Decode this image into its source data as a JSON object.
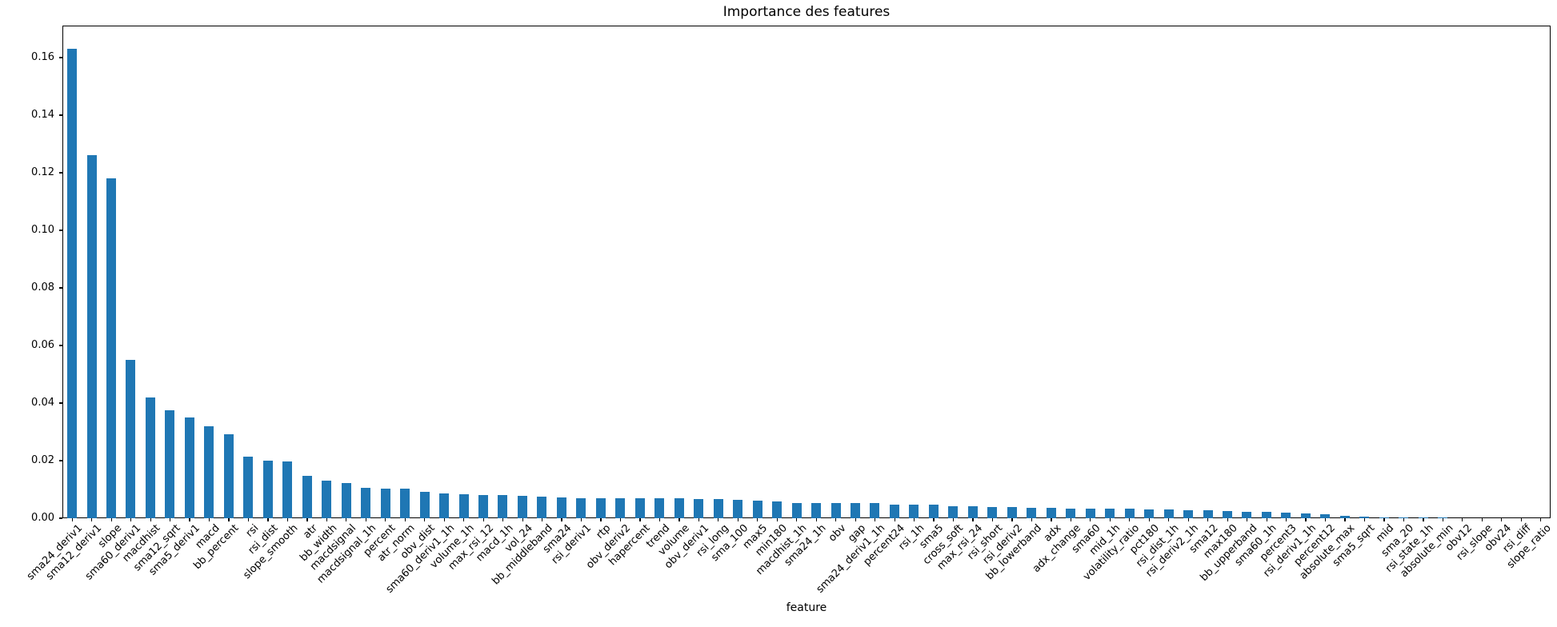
{
  "figure": {
    "background": "#ffffff",
    "text_color": "#000000",
    "axis_color": "#000000"
  },
  "chart_data": {
    "type": "bar",
    "title": "Importance des features",
    "xlabel": "feature",
    "ylabel": "",
    "bar_color": "#1f77b4",
    "grid": false,
    "legend": null,
    "ylim": [
      0,
      0.17111
    ],
    "yticks": [
      0.0,
      0.02,
      0.04,
      0.06,
      0.08,
      0.1,
      0.12,
      0.14,
      0.16
    ],
    "ytick_labels": [
      "0.00",
      "0.02",
      "0.04",
      "0.06",
      "0.08",
      "0.10",
      "0.12",
      "0.14",
      "0.16"
    ],
    "categories": [
      "sma24_deriv1",
      "sma12_deriv1",
      "slope",
      "sma60_deriv1",
      "macdhist",
      "sma12_sqrt",
      "sma5_deriv1",
      "macd",
      "bb_percent",
      "rsi",
      "rsi_dist",
      "slope_smooth",
      "atr",
      "bb_width",
      "macdsignal",
      "macdsignal_1h",
      "percent",
      "atr_norm",
      "obv_dist",
      "sma60_deriv1_1h",
      "volume_1h",
      "max_rsi_12",
      "macd_1h",
      "vol_24",
      "bb_middleband",
      "sma24",
      "rsi_deriv1",
      "rtp",
      "obv_deriv2",
      "hapercent",
      "trend",
      "volume",
      "obv_deriv1",
      "rsi_long",
      "sma_100",
      "max5",
      "min180",
      "macdhist_1h",
      "sma24_1h",
      "obv",
      "gap",
      "sma24_deriv1_1h",
      "percent24",
      "rsi_1h",
      "sma5",
      "cross_soft",
      "max_rsi_24",
      "rsi_short",
      "rsi_deriv2",
      "bb_lowerband",
      "adx",
      "adx_change",
      "sma60",
      "mid_1h",
      "volatility_ratio",
      "pct180",
      "rsi_dist_1h",
      "rsi_deriv2_1h",
      "sma12",
      "max180",
      "bb_upperband",
      "sma60_1h",
      "percent3",
      "rsi_deriv1_1h",
      "percent12",
      "absolute_max",
      "sma5_sqrt",
      "mid",
      "sma_20",
      "rsi_state_1h",
      "absolute_min",
      "obv12",
      "rsi_slope",
      "obv24",
      "rsi_diff",
      "slope_ratio"
    ],
    "values": [
      0.163,
      0.126,
      0.118,
      0.055,
      0.042,
      0.0375,
      0.035,
      0.032,
      0.029,
      0.0212,
      0.02,
      0.0198,
      0.0146,
      0.013,
      0.0123,
      0.0104,
      0.0102,
      0.0101,
      0.0092,
      0.0086,
      0.0084,
      0.008,
      0.0079,
      0.0077,
      0.0074,
      0.0073,
      0.007,
      0.0069,
      0.0069,
      0.0068,
      0.0068,
      0.0068,
      0.0067,
      0.0066,
      0.0062,
      0.006,
      0.0058,
      0.0053,
      0.0052,
      0.0052,
      0.0052,
      0.0051,
      0.0047,
      0.0046,
      0.0046,
      0.0042,
      0.0041,
      0.0039,
      0.0038,
      0.0036,
      0.0035,
      0.0034,
      0.0034,
      0.0033,
      0.0033,
      0.0031,
      0.003,
      0.0027,
      0.0026,
      0.0025,
      0.0022,
      0.0021,
      0.0019,
      0.0015,
      0.0014,
      0.0008,
      0.0004,
      0.0002,
      0.0001,
      0.0001,
      0.0001,
      0.0,
      0.0,
      0.0,
      0.0,
      0.0
    ]
  }
}
